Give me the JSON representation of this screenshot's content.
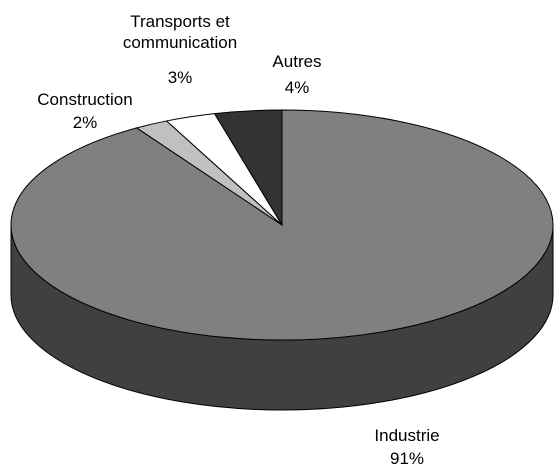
{
  "chart_data": {
    "type": "pie",
    "categories": [
      "Industrie",
      "Construction",
      "Transports et communication",
      "Autres"
    ],
    "values": [
      91,
      2,
      3,
      4
    ],
    "value_labels": [
      "91%",
      "2%",
      "3%",
      "4%"
    ],
    "colors": [
      "#808080",
      "#c0c0c0",
      "#ffffff",
      "#333333"
    ],
    "side_colors": [
      "#404040",
      "#7a7a7a",
      "#bbbbbb",
      "#1a1a1a"
    ]
  }
}
